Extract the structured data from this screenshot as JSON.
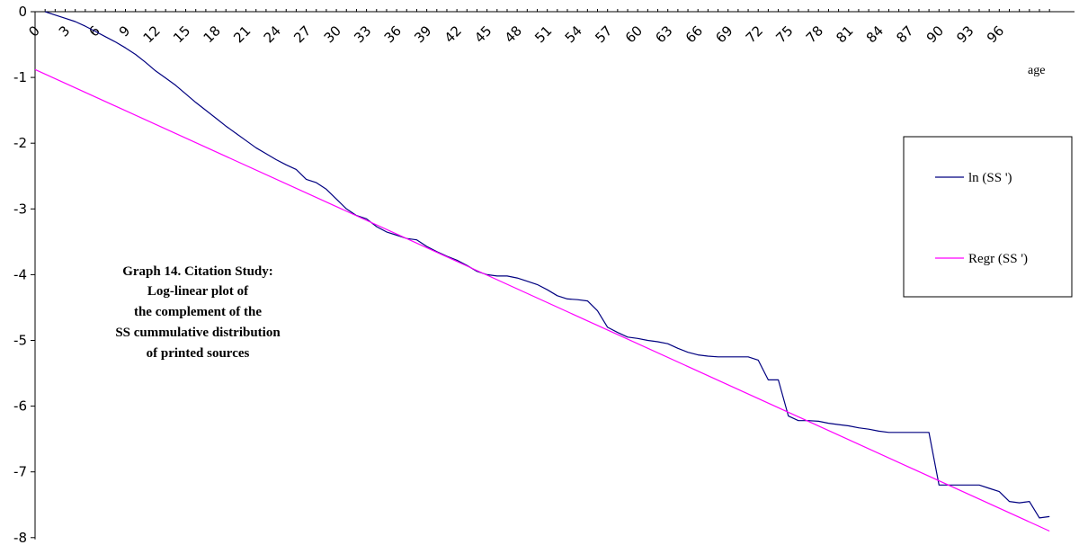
{
  "chart_data": {
    "type": "line",
    "title": "",
    "xlabel": "age",
    "ylabel": "",
    "xlim": [
      0,
      98
    ],
    "ylim": [
      -8,
      0
    ],
    "grid": false,
    "legend_placement": "right",
    "x_ticks": [
      0,
      3,
      6,
      9,
      12,
      15,
      18,
      21,
      24,
      27,
      30,
      33,
      36,
      39,
      42,
      45,
      48,
      51,
      54,
      57,
      60,
      63,
      66,
      69,
      72,
      75,
      78,
      81,
      84,
      87,
      90,
      93,
      96
    ],
    "y_ticks": [
      0,
      -1,
      -2,
      -3,
      -4,
      -5,
      -6,
      -7,
      -8
    ],
    "annotation": [
      "Graph 14.  Citation Study:",
      "Log-linear plot of",
      "the complement of the",
      "SS cummulative distribution",
      "of printed sources"
    ],
    "series": [
      {
        "name": "ln (SS ')",
        "color": "#000080",
        "points": [
          [
            1,
            0.0
          ],
          [
            2,
            -0.05
          ],
          [
            3,
            -0.1
          ],
          [
            4,
            -0.15
          ],
          [
            5,
            -0.22
          ],
          [
            6,
            -0.3
          ],
          [
            7,
            -0.38
          ],
          [
            8,
            -0.46
          ],
          [
            9,
            -0.55
          ],
          [
            10,
            -0.65
          ],
          [
            11,
            -0.77
          ],
          [
            12,
            -0.9
          ],
          [
            13,
            -1.01
          ],
          [
            14,
            -1.12
          ],
          [
            15,
            -1.25
          ],
          [
            16,
            -1.38
          ],
          [
            17,
            -1.5
          ],
          [
            18,
            -1.62
          ],
          [
            19,
            -1.74
          ],
          [
            20,
            -1.85
          ],
          [
            21,
            -1.96
          ],
          [
            22,
            -2.07
          ],
          [
            23,
            -2.16
          ],
          [
            24,
            -2.25
          ],
          [
            25,
            -2.33
          ],
          [
            26,
            -2.4
          ],
          [
            27,
            -2.55
          ],
          [
            28,
            -2.6
          ],
          [
            29,
            -2.7
          ],
          [
            30,
            -2.85
          ],
          [
            31,
            -3.0
          ],
          [
            32,
            -3.1
          ],
          [
            33,
            -3.15
          ],
          [
            34,
            -3.27
          ],
          [
            35,
            -3.35
          ],
          [
            36,
            -3.4
          ],
          [
            37,
            -3.45
          ],
          [
            38,
            -3.47
          ],
          [
            39,
            -3.57
          ],
          [
            40,
            -3.65
          ],
          [
            41,
            -3.72
          ],
          [
            42,
            -3.78
          ],
          [
            43,
            -3.86
          ],
          [
            44,
            -3.95
          ],
          [
            45,
            -4.0
          ],
          [
            46,
            -4.02
          ],
          [
            47,
            -4.02
          ],
          [
            48,
            -4.05
          ],
          [
            49,
            -4.1
          ],
          [
            50,
            -4.15
          ],
          [
            51,
            -4.23
          ],
          [
            52,
            -4.32
          ],
          [
            53,
            -4.37
          ],
          [
            54,
            -4.38
          ],
          [
            55,
            -4.4
          ],
          [
            56,
            -4.55
          ],
          [
            57,
            -4.8
          ],
          [
            58,
            -4.88
          ],
          [
            59,
            -4.95
          ],
          [
            60,
            -4.97
          ],
          [
            61,
            -5.0
          ],
          [
            62,
            -5.02
          ],
          [
            63,
            -5.05
          ],
          [
            64,
            -5.12
          ],
          [
            65,
            -5.18
          ],
          [
            66,
            -5.22
          ],
          [
            67,
            -5.24
          ],
          [
            68,
            -5.25
          ],
          [
            69,
            -5.25
          ],
          [
            70,
            -5.25
          ],
          [
            71,
            -5.25
          ],
          [
            72,
            -5.3
          ],
          [
            73,
            -5.6
          ],
          [
            74,
            -5.6
          ],
          [
            75,
            -6.15
          ],
          [
            76,
            -6.22
          ],
          [
            77,
            -6.22
          ],
          [
            78,
            -6.23
          ],
          [
            79,
            -6.26
          ],
          [
            80,
            -6.28
          ],
          [
            81,
            -6.3
          ],
          [
            82,
            -6.33
          ],
          [
            83,
            -6.35
          ],
          [
            84,
            -6.38
          ],
          [
            85,
            -6.4
          ],
          [
            86,
            -6.4
          ],
          [
            87,
            -6.4
          ],
          [
            88,
            -6.4
          ],
          [
            89,
            -6.4
          ],
          [
            90,
            -7.2
          ],
          [
            91,
            -7.2
          ],
          [
            92,
            -7.2
          ],
          [
            93,
            -7.2
          ],
          [
            94,
            -7.2
          ],
          [
            95,
            -7.25
          ],
          [
            96,
            -7.3
          ],
          [
            97,
            -7.45
          ],
          [
            98,
            -7.47
          ],
          [
            99,
            -7.45
          ],
          [
            100,
            -7.7
          ],
          [
            101,
            -7.68
          ]
        ]
      },
      {
        "name": "Regr (SS ')",
        "color": "#ff00ff",
        "points": [
          [
            0,
            -0.88
          ],
          [
            101,
            -7.9
          ]
        ]
      }
    ]
  }
}
